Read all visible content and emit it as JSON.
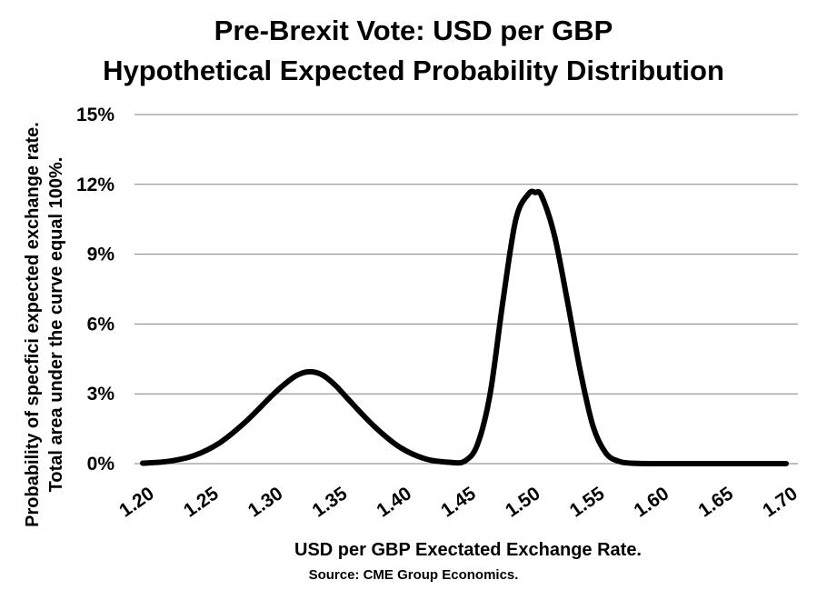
{
  "chart_data": {
    "type": "line",
    "title": "Pre-Brexit Vote: USD per GBP",
    "subtitle": "Hypothetical Expected Probability Distribution",
    "xlabel": "USD per GBP Exectated Exchange Rate.",
    "ylabel_lines": [
      "Probability of specfici expected exchange rate.",
      "Total area under the curve equal 100%."
    ],
    "source": "Source: CME Group Economics.",
    "xlim": [
      1.2,
      1.7
    ],
    "ylim": [
      0,
      15
    ],
    "x_ticks": [
      "1.20",
      "1.25",
      "1.30",
      "1.35",
      "1.40",
      "1.45",
      "1.50",
      "1.55",
      "1.60",
      "1.65",
      "1.70"
    ],
    "y_ticks": [
      "0%",
      "3%",
      "6%",
      "9%",
      "12%",
      "15%"
    ],
    "grid": "horizontal",
    "line_color": "#000000",
    "series": [
      {
        "x": [
          1.2,
          1.22,
          1.24,
          1.26,
          1.28,
          1.3,
          1.31,
          1.32,
          1.33,
          1.34,
          1.35,
          1.36,
          1.38,
          1.4,
          1.42,
          1.44,
          1.45,
          1.46,
          1.47,
          1.48,
          1.49,
          1.5,
          1.505,
          1.51,
          1.52,
          1.53,
          1.54,
          1.55,
          1.56,
          1.57,
          1.58,
          1.6,
          1.65,
          1.7
        ],
        "y": [
          0.02,
          0.1,
          0.35,
          0.9,
          1.8,
          2.9,
          3.4,
          3.8,
          3.95,
          3.8,
          3.35,
          2.75,
          1.6,
          0.7,
          0.2,
          0.05,
          0.1,
          0.8,
          3.0,
          7.0,
          10.5,
          11.6,
          11.65,
          11.5,
          9.8,
          7.0,
          4.0,
          1.6,
          0.45,
          0.1,
          0.02,
          0.0,
          0.0,
          0.0
        ]
      }
    ]
  }
}
